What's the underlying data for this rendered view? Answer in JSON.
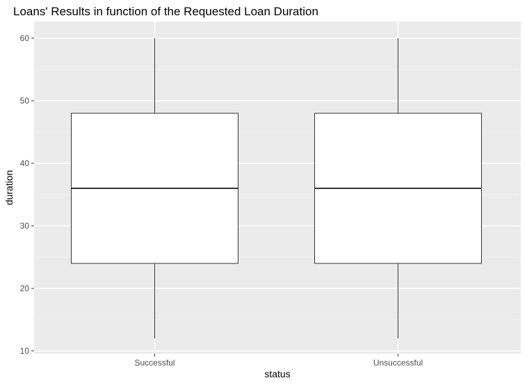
{
  "chart_data": {
    "type": "boxplot",
    "title": "Loans' Results in function of the Requested Loan Duration",
    "xlabel": "status",
    "ylabel": "duration",
    "ylim": [
      10,
      62.4
    ],
    "y_ticks": [
      10,
      20,
      30,
      40,
      50,
      60
    ],
    "y_tick_labels": [
      "10",
      "20",
      "30",
      "40",
      "50",
      "60"
    ],
    "grid": true,
    "legend": "none",
    "categories": [
      "Successful",
      "Unsuccessful"
    ],
    "boxes": [
      {
        "category": "Successful",
        "min": 12,
        "q1": 24,
        "median": 36,
        "q3": 48,
        "max": 60
      },
      {
        "category": "Unsuccessful",
        "min": 12,
        "q1": 24,
        "median": 36,
        "q3": 48,
        "max": 60
      }
    ],
    "colors": {
      "panel_background": "#ebebeb",
      "grid_major": "#ffffff",
      "grid_minor": "#f5f5f5",
      "box_fill": "#ffffff",
      "box_stroke": "#333333"
    }
  }
}
